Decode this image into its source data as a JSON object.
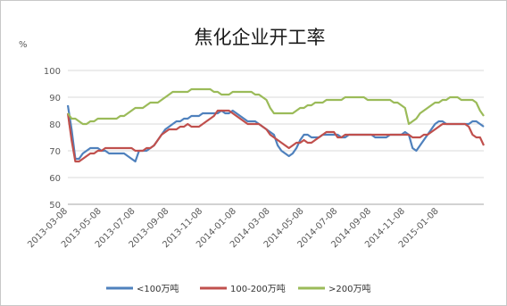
{
  "chart_data": {
    "type": "line",
    "title": "焦化企业开工率",
    "ylabel": "%",
    "ylim": [
      50,
      100
    ],
    "yticks": [
      50,
      60,
      70,
      80,
      90,
      100
    ],
    "xtick_labels": [
      "2013-03-08",
      "2013-05-08",
      "2013-07-08",
      "2013-09-08",
      "2013-11-08",
      "2014-01-08",
      "2014-03-08",
      "2014-05-08",
      "2014-07-08",
      "2014-09-08",
      "2014-11-08",
      "2015-01-08"
    ],
    "xtick_index": [
      0,
      9,
      18,
      27,
      36,
      45,
      54,
      63,
      72,
      81,
      90,
      99
    ],
    "grid": true,
    "legend_position": "bottom",
    "series": [
      {
        "name": "<100万吨",
        "color": "#4f81bd",
        "values": [
          87,
          78,
          67,
          67,
          69,
          70,
          71,
          71,
          71,
          70,
          70,
          69,
          69,
          69,
          69,
          69,
          68,
          67,
          66,
          70,
          70,
          70,
          71,
          72,
          74,
          76,
          78,
          79,
          80,
          81,
          81,
          82,
          82,
          83,
          83,
          83,
          84,
          84,
          84,
          84,
          84,
          85,
          84,
          84,
          85,
          84,
          83,
          82,
          81,
          81,
          81,
          80,
          79,
          78,
          77,
          76,
          72,
          70,
          69,
          68,
          69,
          71,
          74,
          76,
          76,
          75,
          75,
          75,
          76,
          76,
          76,
          76,
          76,
          75,
          75,
          76,
          76,
          76,
          76,
          76,
          76,
          76,
          75,
          75,
          75,
          75,
          76,
          76,
          76,
          76,
          77,
          76,
          71,
          70,
          72,
          74,
          76,
          78,
          80,
          81,
          81,
          80,
          80,
          80,
          80,
          80,
          80,
          80,
          81,
          81,
          80,
          79
        ]
      },
      {
        "name": "100-200万吨",
        "color": "#c0504d",
        "values": [
          84,
          74,
          66,
          66,
          67,
          68,
          69,
          69,
          70,
          70,
          71,
          71,
          71,
          71,
          71,
          71,
          71,
          71,
          70,
          70,
          70,
          71,
          71,
          72,
          74,
          76,
          77,
          78,
          78,
          78,
          79,
          79,
          80,
          79,
          79,
          79,
          80,
          81,
          82,
          83,
          85,
          85,
          85,
          85,
          84,
          83,
          82,
          81,
          80,
          80,
          80,
          80,
          79,
          78,
          76,
          75,
          74,
          73,
          72,
          71,
          72,
          73,
          73,
          74,
          73,
          73,
          74,
          75,
          76,
          77,
          77,
          77,
          75,
          75,
          76,
          76,
          76,
          76,
          76,
          76,
          76,
          76,
          76,
          76,
          76,
          76,
          76,
          76,
          76,
          76,
          76,
          76,
          75,
          75,
          75,
          76,
          76,
          77,
          78,
          79,
          80,
          80,
          80,
          80,
          80,
          80,
          80,
          79,
          76,
          75,
          75,
          72
        ]
      },
      {
        "name": ">200万吨",
        "color": "#9bbb59",
        "values": [
          84,
          82,
          82,
          81,
          80,
          80,
          81,
          81,
          82,
          82,
          82,
          82,
          82,
          82,
          83,
          83,
          84,
          85,
          86,
          86,
          86,
          87,
          88,
          88,
          88,
          89,
          90,
          91,
          92,
          92,
          92,
          92,
          92,
          93,
          93,
          93,
          93,
          93,
          93,
          92,
          92,
          91,
          91,
          91,
          92,
          92,
          92,
          92,
          92,
          92,
          91,
          91,
          90,
          89,
          86,
          84,
          84,
          84,
          84,
          84,
          84,
          85,
          86,
          86,
          87,
          87,
          88,
          88,
          88,
          89,
          89,
          89,
          89,
          89,
          90,
          90,
          90,
          90,
          90,
          90,
          89,
          89,
          89,
          89,
          89,
          89,
          89,
          88,
          88,
          87,
          86,
          80,
          81,
          82,
          84,
          85,
          86,
          87,
          88,
          88,
          89,
          89,
          90,
          90,
          90,
          89,
          89,
          89,
          89,
          88,
          85,
          83
        ]
      }
    ]
  }
}
